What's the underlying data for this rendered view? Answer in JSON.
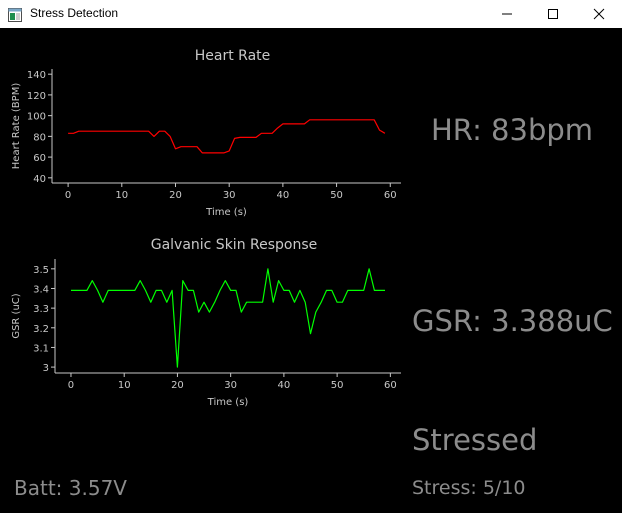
{
  "window": {
    "title": "Stress Detection",
    "buttons": {
      "minimize": "minimize",
      "maximize": "maximize",
      "close": "close"
    }
  },
  "readouts": {
    "hr": "HR: 83bpm",
    "gsr": "GSR: 3.388uC",
    "state": "Stressed",
    "battery": "Batt: 3.57V",
    "stress": "Stress: 5/10"
  },
  "colors": {
    "background": "#000000",
    "axis": "#c8c8c8",
    "title_text": "#c8c8c8",
    "readout_text": "#8c8c8c",
    "hr_line": "#ff0000",
    "gsr_line": "#00ff00"
  },
  "chart_data": [
    {
      "type": "line",
      "title": "Heart Rate",
      "xlabel": "Time (s)",
      "ylabel": "Heart Rate (BPM)",
      "xlim": [
        -3,
        62
      ],
      "ylim": [
        35,
        145
      ],
      "xticks": [
        0,
        10,
        20,
        30,
        40,
        50,
        60
      ],
      "yticks": [
        40,
        60,
        80,
        100,
        120,
        140
      ],
      "grid": false,
      "series": [
        {
          "color": "#ff0000",
          "x": [
            0,
            1,
            2,
            3,
            4,
            5,
            6,
            7,
            8,
            9,
            10,
            11,
            12,
            13,
            14,
            15,
            16,
            17,
            18,
            19,
            20,
            21,
            22,
            23,
            24,
            25,
            26,
            27,
            28,
            29,
            30,
            31,
            32,
            33,
            34,
            35,
            36,
            37,
            38,
            39,
            40,
            41,
            42,
            43,
            44,
            45,
            46,
            47,
            48,
            49,
            50,
            51,
            52,
            53,
            54,
            55,
            56,
            57,
            58,
            59
          ],
          "values": [
            83,
            83,
            85,
            85,
            85,
            85,
            85,
            85,
            85,
            85,
            85,
            85,
            85,
            85,
            85,
            85,
            80,
            85,
            85,
            80,
            68,
            70,
            70,
            70,
            70,
            64,
            64,
            64,
            64,
            64,
            66,
            78,
            79,
            79,
            79,
            79,
            83,
            83,
            83,
            88,
            92,
            92,
            92,
            92,
            92,
            96,
            96,
            96,
            96,
            96,
            96,
            96,
            96,
            96,
            96,
            96,
            96,
            96,
            86,
            83
          ]
        }
      ]
    },
    {
      "type": "line",
      "title": "Galvanic Skin Response",
      "xlabel": "Time (s)",
      "ylabel": "GSR (uC)",
      "xlim": [
        -3,
        62
      ],
      "ylim": [
        2.97,
        3.55
      ],
      "xticks": [
        0,
        10,
        20,
        30,
        40,
        50,
        60
      ],
      "yticks": [
        3,
        3.1,
        3.2,
        3.3,
        3.4,
        3.5
      ],
      "grid": false,
      "series": [
        {
          "color": "#00ff00",
          "x": [
            0,
            1,
            2,
            3,
            4,
            5,
            6,
            7,
            8,
            9,
            10,
            11,
            12,
            13,
            14,
            15,
            16,
            17,
            18,
            19,
            20,
            21,
            22,
            23,
            24,
            25,
            26,
            27,
            28,
            29,
            30,
            31,
            32,
            33,
            34,
            35,
            36,
            37,
            38,
            39,
            40,
            41,
            42,
            43,
            44,
            45,
            46,
            47,
            48,
            49,
            50,
            51,
            52,
            53,
            54,
            55,
            56,
            57,
            58,
            59
          ],
          "values": [
            3.39,
            3.39,
            3.39,
            3.39,
            3.44,
            3.39,
            3.33,
            3.39,
            3.39,
            3.39,
            3.39,
            3.39,
            3.39,
            3.44,
            3.39,
            3.33,
            3.39,
            3.39,
            3.33,
            3.39,
            3.0,
            3.44,
            3.39,
            3.39,
            3.28,
            3.33,
            3.28,
            3.33,
            3.39,
            3.44,
            3.39,
            3.39,
            3.28,
            3.33,
            3.33,
            3.33,
            3.33,
            3.5,
            3.33,
            3.44,
            3.39,
            3.39,
            3.33,
            3.39,
            3.33,
            3.17,
            3.28,
            3.33,
            3.39,
            3.39,
            3.33,
            3.33,
            3.39,
            3.39,
            3.39,
            3.39,
            3.5,
            3.39,
            3.39,
            3.39
          ]
        }
      ]
    }
  ]
}
